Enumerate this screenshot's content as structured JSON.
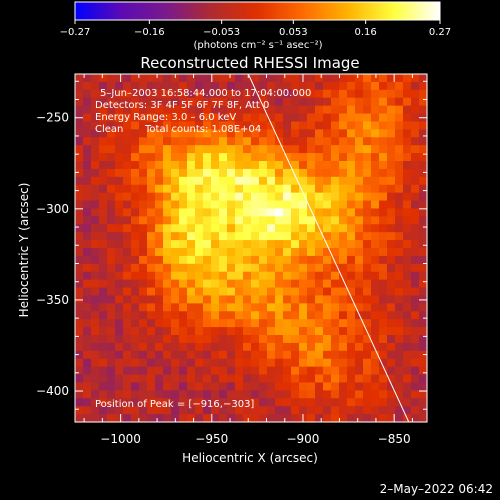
{
  "chart_data": {
    "type": "heatmap",
    "title": "Reconstructed RHESSI Image",
    "xlabel": "Heliocentric X (arcsec)",
    "ylabel": "Heliocentric Y (arcsec)",
    "xlim": [
      -1025,
      -832
    ],
    "ylim": [
      -417,
      -226
    ],
    "x_ticks": [
      -1000,
      -950,
      -900,
      -850
    ],
    "y_ticks": [
      -250,
      -300,
      -350,
      -400
    ],
    "x_tick_labels": [
      "−1000",
      "−950",
      "−900",
      "−850"
    ],
    "y_tick_labels": [
      "−250",
      "−300",
      "−350",
      "−400"
    ],
    "colorbar": {
      "range": [
        -0.27,
        0.27
      ],
      "ticks": [
        -0.27,
        -0.16,
        -0.053,
        0.053,
        0.16,
        0.27
      ],
      "tick_labels": [
        "−0.27",
        "−0.16",
        "−0.053",
        "0.053",
        "0.16",
        "0.27"
      ],
      "unit_label": "(photons cm⁻² s⁻¹ asec⁻²)",
      "colors": [
        "#0000ff",
        "#5a0ab4",
        "#7a1a8c",
        "#b02a30",
        "#e03000",
        "#ff6a00",
        "#ffb400",
        "#ffff40",
        "#ffffff"
      ]
    },
    "annotations": {
      "time_range": "5–Jun–2003 16:58:44.000 to 17:04:00.000",
      "detectors": "Detectors: 3F 4F 5F 6F 7F 8F, Att 0",
      "energy": "Energy Range: 3.0 – 6.0 keV",
      "method": "Clean",
      "counts": "Total counts: 1.08E+04",
      "peak": "Position of Peak = [−916,−303]"
    },
    "peak_position": [
      -916,
      -303
    ],
    "limb_line": [
      [
        -930,
        -226
      ],
      [
        -842,
        -417
      ]
    ],
    "emission_sources": [
      {
        "x": -912,
        "y": -303,
        "sigma_x": 22,
        "sigma_y": 18,
        "amplitude": 0.26
      },
      {
        "x": -963,
        "y": -310,
        "sigma_x": 18,
        "sigma_y": 22,
        "amplitude": 0.2
      },
      {
        "x": -945,
        "y": -275,
        "sigma_x": 25,
        "sigma_y": 16,
        "amplitude": 0.18
      },
      {
        "x": -938,
        "y": -345,
        "sigma_x": 30,
        "sigma_y": 18,
        "amplitude": 0.14
      },
      {
        "x": -905,
        "y": -370,
        "sigma_x": 20,
        "sigma_y": 18,
        "amplitude": 0.09
      },
      {
        "x": -990,
        "y": -265,
        "sigma_x": 15,
        "sigma_y": 15,
        "amplitude": 0.06
      },
      {
        "x": -870,
        "y": -300,
        "sigma_x": 18,
        "sigma_y": 40,
        "amplitude": 0.1
      },
      {
        "x": -860,
        "y": -250,
        "sigma_x": 20,
        "sigma_y": 25,
        "amplitude": 0.09
      },
      {
        "x": -880,
        "y": -390,
        "sigma_x": 20,
        "sigma_y": 20,
        "amplitude": 0.07
      }
    ],
    "background_level": -0.06,
    "grid": false
  },
  "footer_date": "2–May–2022 06:42"
}
